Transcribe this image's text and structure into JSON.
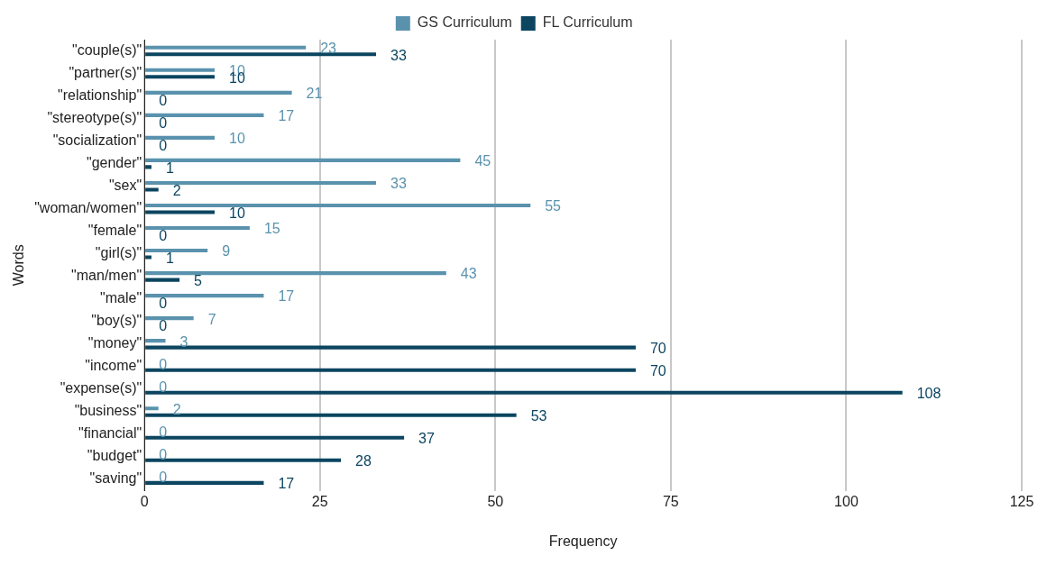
{
  "chart_data": {
    "type": "bar",
    "orientation": "horizontal",
    "xlabel": "Frequency",
    "ylabel": "Words",
    "categories": [
      "\"couple(s)\"",
      "\"partner(s)\"",
      "\"relationship\"",
      "\"stereotype(s)\"",
      "\"socialization\"",
      "\"gender\"",
      "\"sex\"",
      "\"woman/women\"",
      "\"female\"",
      "\"girl(s)\"",
      "\"man/men\"",
      "\"male\"",
      "\"boy(s)\"",
      "\"money\"",
      "\"income\"",
      "\"expense(s)\"",
      "\"business\"",
      "\"financial\"",
      "\"budget\"",
      "\"saving\""
    ],
    "series": [
      {
        "name": "GS Curriculum",
        "color": "#5a92ad",
        "values": [
          23,
          10,
          21,
          17,
          10,
          45,
          33,
          55,
          15,
          9,
          43,
          17,
          7,
          3,
          0,
          0,
          2,
          0,
          0,
          0
        ]
      },
      {
        "name": "FL Curriculum",
        "color": "#0b4560",
        "values": [
          33,
          10,
          0,
          0,
          0,
          1,
          2,
          10,
          0,
          1,
          5,
          0,
          0,
          70,
          70,
          108,
          53,
          37,
          28,
          17
        ]
      }
    ],
    "xlim": [
      0,
      125
    ],
    "xticks": [
      0,
      25,
      50,
      75,
      100,
      125
    ],
    "grid": "x",
    "legend": "top",
    "data_labels": true
  }
}
